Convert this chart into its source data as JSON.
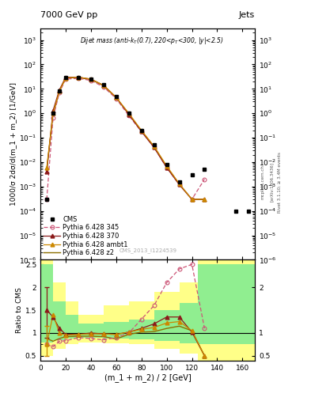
{
  "title_left": "7000 GeV pp",
  "title_right": "Jets",
  "annotation": "Dijet mass (anti-k_{T}(0.7), 220<p_{T}<300, |y|<2.5)",
  "watermark": "CMS_2013_I1224539",
  "ylabel_main": "1000/σ 2dσ/d(m_1 + m_2) [1/GeV]",
  "ylabel_ratio": "Ratio to CMS",
  "xlabel": "(m_1 + m_2) / 2 [GeV]",
  "xlim": [
    0,
    170
  ],
  "ylim_main": [
    1e-06,
    3000.0
  ],
  "ylim_ratio": [
    0.4,
    2.6
  ],
  "cms_x": [
    5,
    10,
    15,
    20,
    30,
    40,
    50,
    60,
    70,
    80,
    90,
    100,
    110,
    120,
    130,
    155,
    165
  ],
  "cms_y": [
    0.0003,
    1.0,
    8.0,
    30.0,
    30.0,
    25.0,
    15.0,
    5.0,
    1.0,
    0.2,
    0.05,
    0.008,
    0.0015,
    0.003,
    0.005,
    0.0001,
    0.0001
  ],
  "p345_x": [
    5,
    10,
    15,
    20,
    30,
    40,
    50,
    60,
    70,
    80,
    90,
    100,
    110,
    120,
    130
  ],
  "p345_y": [
    0.0003,
    0.65,
    7.0,
    25.0,
    27.0,
    22.0,
    12.0,
    4.0,
    0.8,
    0.18,
    0.04,
    0.006,
    0.0012,
    0.0003,
    0.002
  ],
  "p370_x": [
    5,
    10,
    15,
    20,
    30,
    40,
    50,
    60,
    70,
    80,
    90,
    100,
    110,
    120,
    130
  ],
  "p370_y": [
    0.004,
    1.3,
    9.0,
    30.0,
    30.0,
    25.0,
    14.0,
    4.5,
    0.9,
    0.18,
    0.04,
    0.006,
    0.0012,
    0.0003,
    0.0003
  ],
  "pambt1_x": [
    5,
    10,
    15,
    20,
    30,
    40,
    50,
    60,
    70,
    80,
    90,
    100,
    110,
    120,
    130
  ],
  "pambt1_y": [
    0.006,
    1.0,
    8.0,
    28.0,
    30.0,
    25.0,
    14.0,
    4.5,
    1.0,
    0.2,
    0.045,
    0.007,
    0.0013,
    0.0003,
    0.0003
  ],
  "pz2_x": [
    5,
    10,
    15,
    20,
    30,
    40,
    50,
    60,
    70,
    80,
    90,
    100,
    110,
    120,
    130
  ],
  "pz2_y": [
    0.005,
    0.9,
    7.8,
    28.0,
    29.0,
    24.0,
    13.5,
    4.3,
    0.95,
    0.19,
    0.043,
    0.0065,
    0.00125,
    0.0003,
    0.0003
  ],
  "ratio_p345_x": [
    5,
    10,
    15,
    20,
    30,
    40,
    50,
    60,
    70,
    80,
    90,
    100,
    110,
    120,
    130
  ],
  "ratio_p345_y": [
    0.75,
    0.7,
    0.82,
    0.83,
    0.9,
    0.88,
    0.85,
    0.9,
    1.0,
    1.3,
    1.6,
    2.1,
    2.4,
    2.5,
    1.1
  ],
  "ratio_p370_x": [
    5,
    10,
    15,
    20,
    30,
    40,
    50,
    60,
    70,
    80,
    90,
    100,
    110,
    120,
    130
  ],
  "ratio_p370_y": [
    1.5,
    1.35,
    1.1,
    0.97,
    0.97,
    1.0,
    0.98,
    0.97,
    1.02,
    1.1,
    1.2,
    1.35,
    1.35,
    1.02,
    0.5
  ],
  "ratio_pambt1_x": [
    5,
    10,
    15,
    20,
    30,
    40,
    50,
    60,
    70,
    80,
    90,
    100,
    110,
    120,
    130
  ],
  "ratio_pambt1_y": [
    0.75,
    1.4,
    1.0,
    0.95,
    0.97,
    0.98,
    0.98,
    0.97,
    1.02,
    1.08,
    1.12,
    1.22,
    1.25,
    1.05,
    0.5
  ],
  "ratio_pz2_x": [
    5,
    10,
    15,
    20,
    30,
    40,
    50,
    60,
    70,
    80,
    90,
    100,
    110,
    120,
    130
  ],
  "ratio_pz2_y": [
    0.88,
    0.82,
    0.88,
    0.92,
    0.93,
    0.93,
    0.92,
    0.87,
    0.97,
    1.02,
    1.03,
    1.1,
    1.15,
    1.05,
    0.5
  ],
  "green_band_edges": [
    0,
    10,
    10,
    20,
    20,
    30,
    30,
    50,
    50,
    70,
    70,
    90,
    90,
    110,
    110,
    125,
    125,
    170
  ],
  "green_band_lo": [
    0.8,
    0.8,
    0.85,
    0.85,
    0.88,
    0.88,
    0.9,
    0.9,
    0.88,
    0.88,
    0.87,
    0.87,
    0.82,
    0.82,
    0.78,
    0.78,
    0.75,
    0.75
  ],
  "green_band_hi": [
    2.5,
    2.5,
    1.7,
    1.7,
    1.4,
    1.4,
    1.2,
    1.2,
    1.25,
    1.25,
    1.3,
    1.3,
    1.5,
    1.5,
    1.65,
    1.65,
    2.5,
    2.5
  ],
  "yellow_band_edges": [
    0,
    10,
    10,
    20,
    20,
    30,
    30,
    50,
    50,
    70,
    70,
    90,
    90,
    110,
    110,
    125,
    125,
    170
  ],
  "yellow_band_lo": [
    0.5,
    0.5,
    0.65,
    0.65,
    0.75,
    0.75,
    0.8,
    0.8,
    0.78,
    0.78,
    0.75,
    0.75,
    0.65,
    0.65,
    0.55,
    0.55,
    0.4,
    0.4
  ],
  "yellow_band_hi": [
    2.6,
    2.6,
    2.1,
    2.1,
    1.7,
    1.7,
    1.4,
    1.4,
    1.6,
    1.6,
    1.7,
    1.7,
    1.9,
    1.9,
    2.1,
    2.1,
    2.6,
    2.6
  ],
  "color_cms": "#000000",
  "color_p345": "#cc5577",
  "color_p370": "#8b1a1a",
  "color_pambt1": "#cc8800",
  "color_pz2": "#8b7000",
  "color_green": "#90ee90",
  "color_yellow": "#ffff88",
  "side_label1": "mcplots.cern.ch",
  "side_label2": "[arXiv:1306.3436]",
  "side_label3": "Rivet 3.1.10; ≥ 3.4M events"
}
